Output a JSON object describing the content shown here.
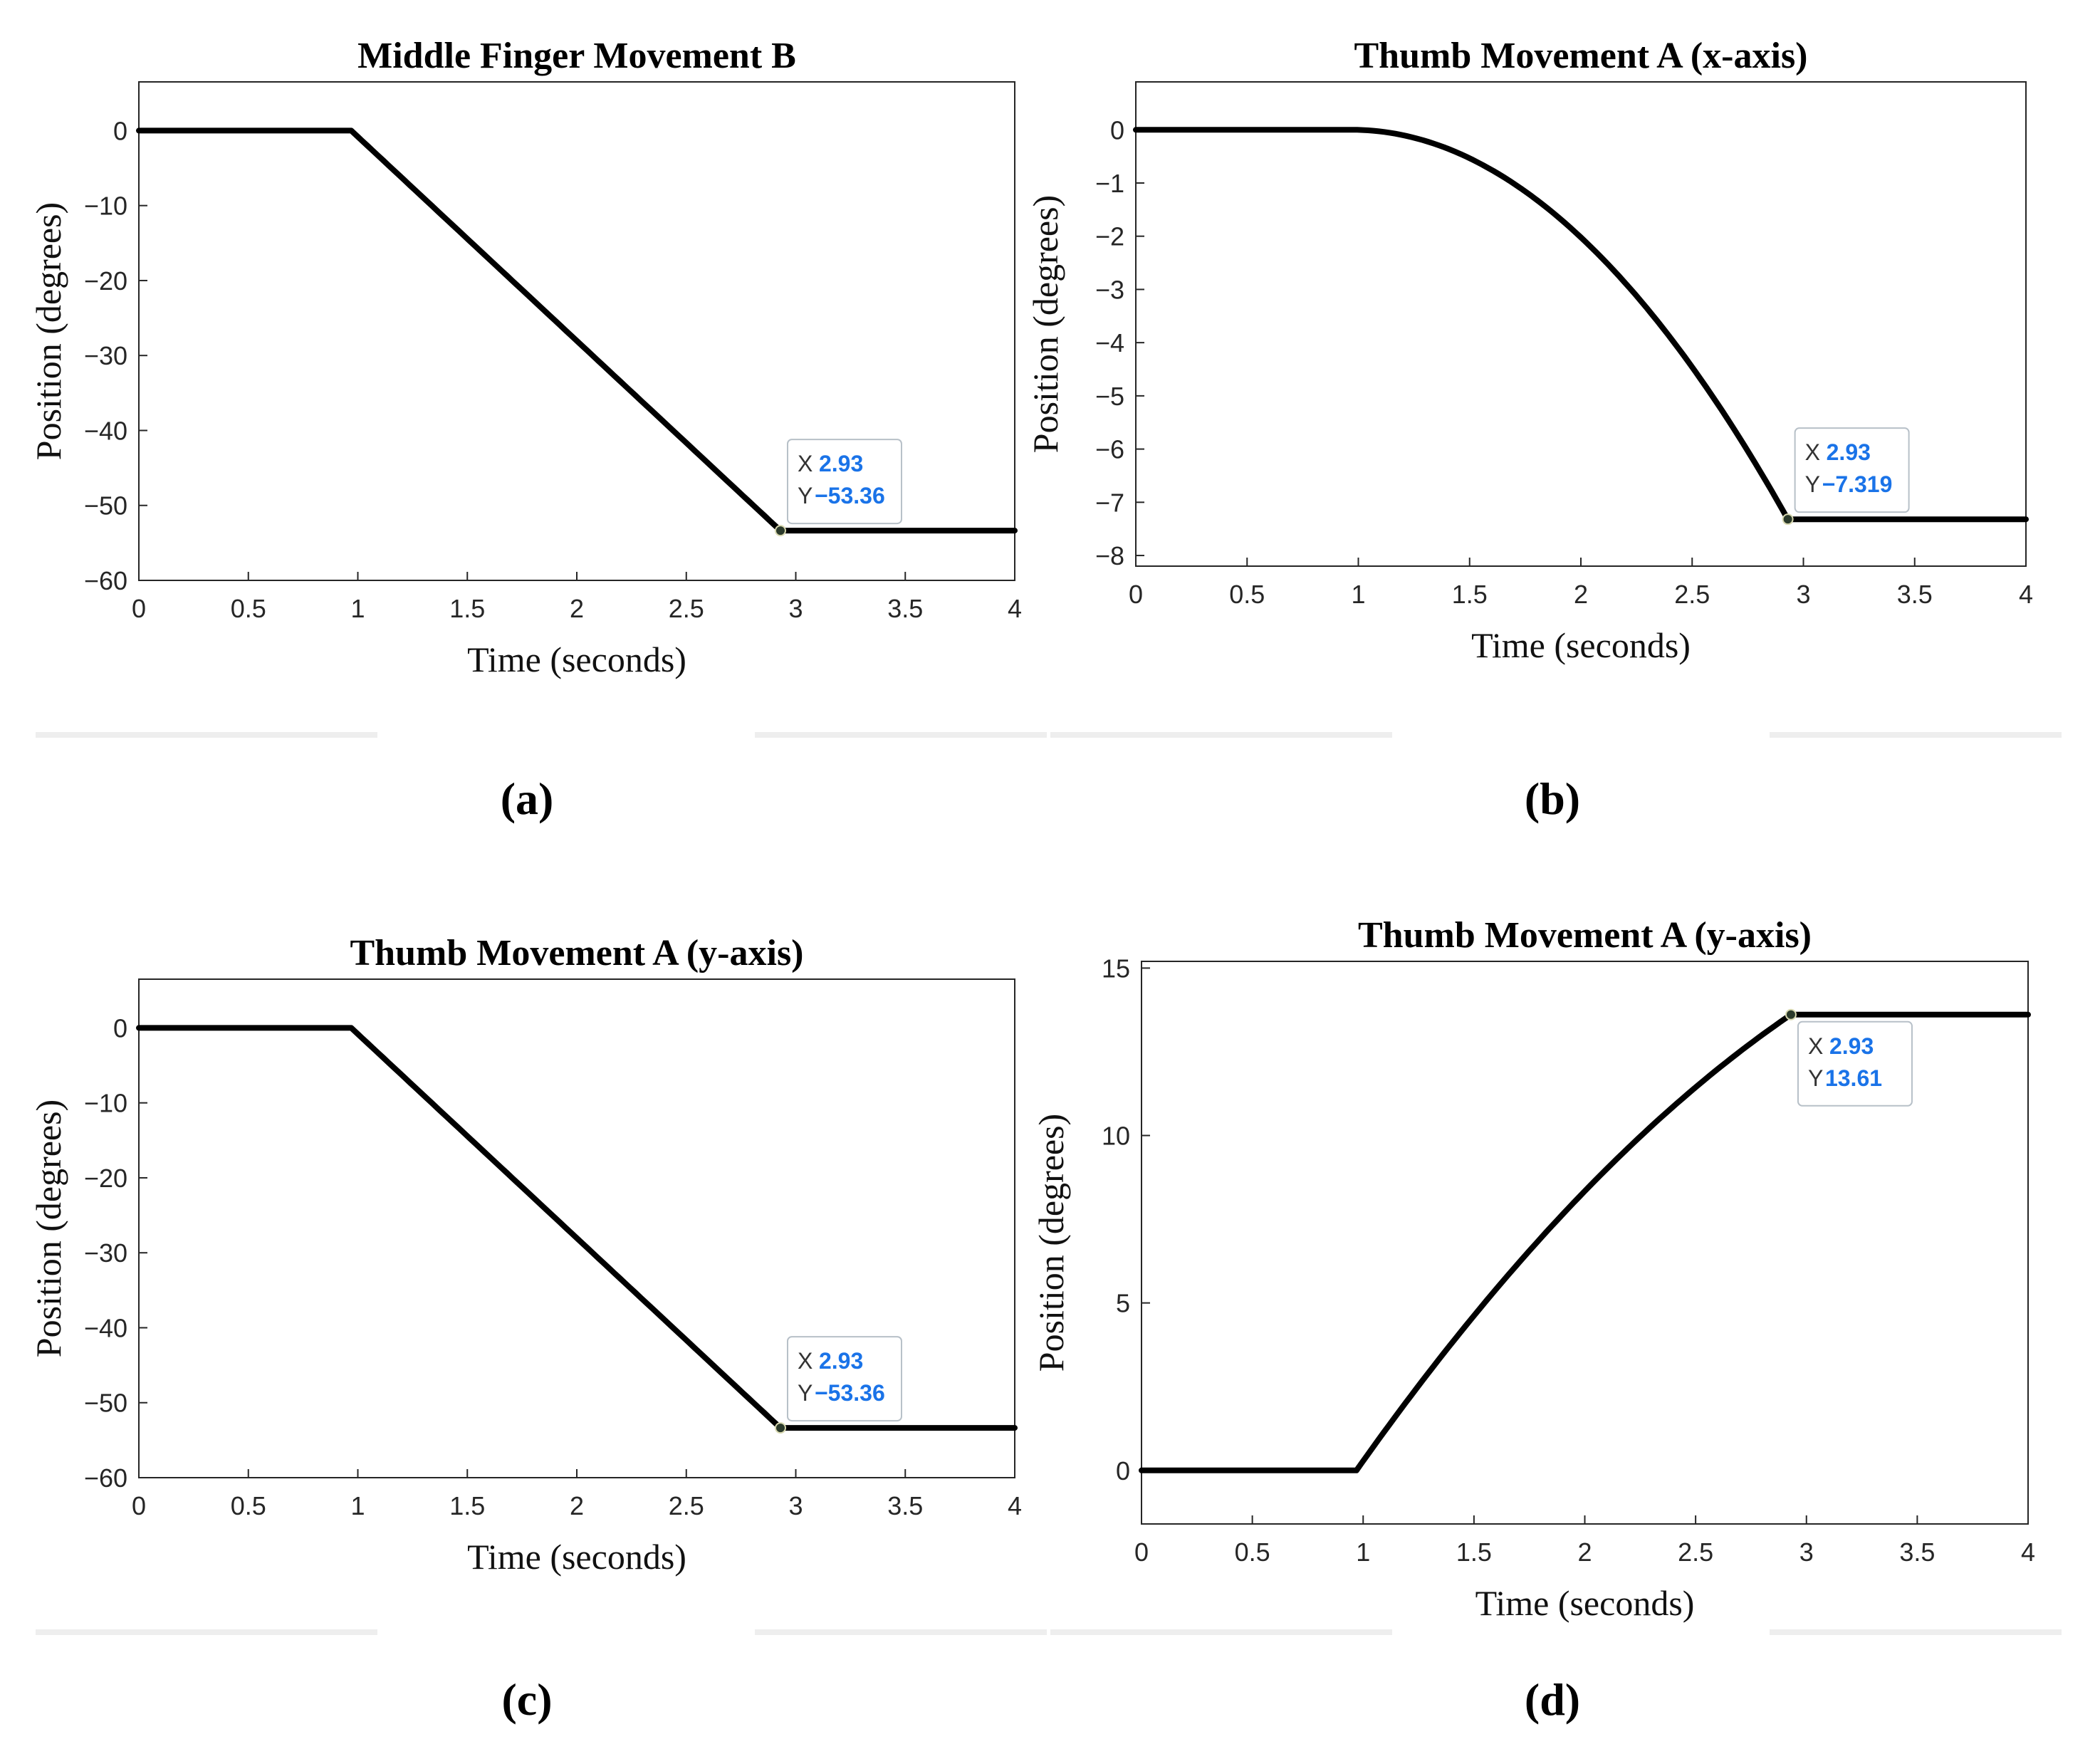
{
  "chart_data": [
    {
      "type": "line",
      "title": "Middle Finger Movement B",
      "xlabel": "Time (seconds)",
      "ylabel": "Position (degrees)",
      "xlim": [
        0,
        4
      ],
      "ylim": [
        -60,
        6.5
      ],
      "xticks": [
        0,
        0.5,
        1,
        1.5,
        2,
        2.5,
        3,
        3.5,
        4
      ],
      "xtick_labels": [
        "0",
        "0.5",
        "1",
        "1.5",
        "2",
        "2.5",
        "3",
        "3.5",
        "4"
      ],
      "yticks": [
        0,
        -10,
        -20,
        -30,
        -40,
        -50,
        -60
      ],
      "ytick_labels": [
        "0",
        "−10",
        "−20",
        "−30",
        "−40",
        "−50",
        "−60"
      ],
      "grid": true,
      "series": [
        {
          "shape": "linear",
          "x": [
            0,
            0.97,
            2.93,
            4
          ],
          "y": [
            0,
            0,
            -53.36,
            -53.36
          ]
        }
      ],
      "datatip": {
        "x": 2.93,
        "y": -53.36,
        "x_key": "X",
        "y_key": "Y",
        "x_text": "2.93",
        "y_text": "−53.36",
        "position": "above-right"
      },
      "caption": "(a)"
    },
    {
      "type": "line",
      "title": "Thumb Movement A (x-axis)",
      "xlabel": "Time (seconds)",
      "ylabel": "Position (degrees)",
      "xlim": [
        0,
        4
      ],
      "ylim": [
        -8.2,
        0.9
      ],
      "xticks": [
        0,
        0.5,
        1,
        1.5,
        2,
        2.5,
        3,
        3.5,
        4
      ],
      "xtick_labels": [
        "0",
        "0.5",
        "1",
        "1.5",
        "2",
        "2.5",
        "3",
        "3.5",
        "4"
      ],
      "yticks": [
        0,
        -1,
        -2,
        -3,
        -4,
        -5,
        -6,
        -7,
        -8
      ],
      "ytick_labels": [
        "0",
        "−1",
        "−2",
        "−3",
        "−4",
        "−5",
        "−6",
        "−7",
        "−8"
      ],
      "grid": true,
      "series": [
        {
          "shape": "concave-down",
          "x": [
            0,
            0.97,
            2.93,
            4
          ],
          "y": [
            0,
            0,
            -7.319,
            -7.319
          ]
        }
      ],
      "datatip": {
        "x": 2.93,
        "y": -7.319,
        "x_key": "X",
        "y_key": "Y",
        "x_text": "2.93",
        "y_text": "−7.319",
        "position": "above-right"
      },
      "caption": "(b)"
    },
    {
      "type": "line",
      "title": "Thumb Movement A (y-axis)",
      "xlabel": "Time (seconds)",
      "ylabel": "Position (degrees)",
      "xlim": [
        0,
        4
      ],
      "ylim": [
        -60,
        6.5
      ],
      "xticks": [
        0,
        0.5,
        1,
        1.5,
        2,
        2.5,
        3,
        3.5,
        4
      ],
      "xtick_labels": [
        "0",
        "0.5",
        "1",
        "1.5",
        "2",
        "2.5",
        "3",
        "3.5",
        "4"
      ],
      "yticks": [
        0,
        -10,
        -20,
        -30,
        -40,
        -50,
        -60
      ],
      "ytick_labels": [
        "0",
        "−10",
        "−20",
        "−30",
        "−40",
        "−50",
        "−60"
      ],
      "grid": true,
      "series": [
        {
          "shape": "linear",
          "x": [
            0,
            0.97,
            2.93,
            4
          ],
          "y": [
            0,
            0,
            -53.36,
            -53.36
          ]
        }
      ],
      "datatip": {
        "x": 2.93,
        "y": -53.36,
        "x_key": "X",
        "y_key": "Y",
        "x_text": "2.93",
        "y_text": "−53.36",
        "position": "above-right"
      },
      "caption": "(c)"
    },
    {
      "type": "line",
      "title": "Thumb Movement A (y-axis)",
      "xlabel": "Time (seconds)",
      "ylabel": "Position (degrees)",
      "xlim": [
        0,
        4
      ],
      "ylim": [
        -1.6,
        15.2
      ],
      "xticks": [
        0,
        0.5,
        1,
        1.5,
        2,
        2.5,
        3,
        3.5,
        4
      ],
      "xtick_labels": [
        "0",
        "0.5",
        "1",
        "1.5",
        "2",
        "2.5",
        "3",
        "3.5",
        "4"
      ],
      "yticks": [
        0,
        5,
        10,
        15
      ],
      "ytick_labels": [
        "0",
        "5",
        "10",
        "15"
      ],
      "grid": true,
      "series": [
        {
          "shape": "concave-down-rise",
          "x": [
            0,
            0.97,
            2.93,
            4
          ],
          "y": [
            0,
            0,
            13.61,
            13.61
          ]
        }
      ],
      "datatip": {
        "x": 2.93,
        "y": 13.61,
        "x_key": "X",
        "y_key": "Y",
        "x_text": "2.93",
        "y_text": "13.61",
        "position": "below-right"
      },
      "caption": "(d)"
    }
  ]
}
